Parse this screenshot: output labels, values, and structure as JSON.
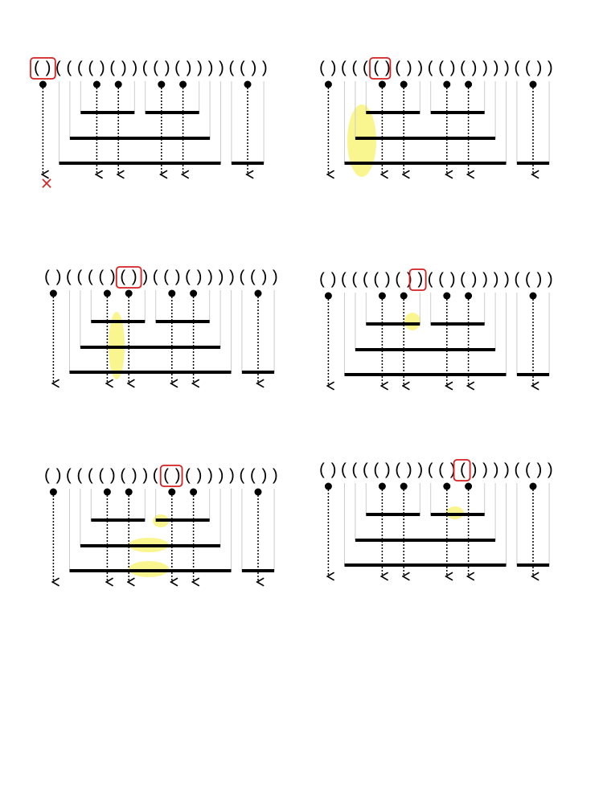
{
  "panels": [
    {
      "text": "()(((()())(()())))(())"
    },
    {
      "text": "()(((()())(()())))(())"
    },
    {
      "text": "()(((()())(()())))(())"
    },
    {
      "text": "()(((()())(()())))(())"
    },
    {
      "text": "()(((()())(()())))(())"
    },
    {
      "text": "()(((()())(()())))(())"
    }
  ],
  "mark": "×"
}
